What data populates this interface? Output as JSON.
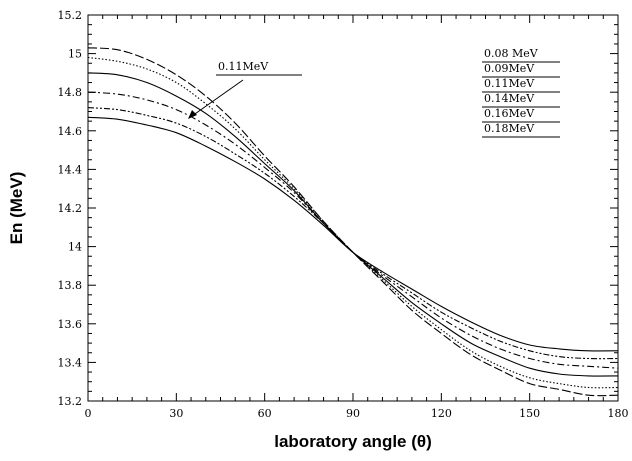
{
  "chart_data": {
    "type": "line",
    "title": "",
    "xlabel": "laboratory angle (θ)",
    "ylabel": "En (MeV)",
    "xlim": [
      0,
      180
    ],
    "ylim": [
      13.2,
      15.2
    ],
    "xticks": [
      "0",
      "30",
      "60",
      "90",
      "120",
      "150",
      "180"
    ],
    "yticks": [
      "13.2",
      "13.4",
      "13.6",
      "13.8",
      "14",
      "14.2",
      "14.4",
      "14.6",
      "14.8",
      "15",
      "15.2"
    ],
    "grid": false,
    "legend_position": "top-right",
    "x": [
      0,
      10,
      20,
      30,
      40,
      50,
      60,
      70,
      80,
      90,
      100,
      110,
      120,
      130,
      140,
      150,
      160,
      170,
      180
    ],
    "series": [
      {
        "name": "0.08 MeV",
        "style": "long-dash",
        "color": "#000000",
        "values": [
          15.03,
          15.02,
          14.97,
          14.89,
          14.78,
          14.64,
          14.47,
          14.31,
          14.13,
          13.97,
          13.82,
          13.67,
          13.55,
          13.44,
          13.36,
          13.29,
          13.26,
          13.23,
          13.23
        ]
      },
      {
        "name": "0.09MeV",
        "style": "dotted",
        "color": "#000000",
        "values": [
          14.98,
          14.96,
          14.92,
          14.85,
          14.74,
          14.61,
          14.45,
          14.3,
          14.13,
          13.97,
          13.83,
          13.69,
          13.57,
          13.46,
          13.38,
          13.32,
          13.29,
          13.27,
          13.27
        ]
      },
      {
        "name": "0.11MeV",
        "style": "solid",
        "color": "#000000",
        "values": [
          14.9,
          14.89,
          14.85,
          14.78,
          14.69,
          14.57,
          14.43,
          14.29,
          14.12,
          13.97,
          13.84,
          13.71,
          13.6,
          13.5,
          13.43,
          13.37,
          13.34,
          13.33,
          13.33
        ]
      },
      {
        "name": "0.14MeV",
        "style": "dash-dot",
        "color": "#000000",
        "values": [
          14.8,
          14.79,
          14.76,
          14.71,
          14.63,
          14.53,
          14.41,
          14.28,
          14.12,
          13.97,
          13.85,
          13.74,
          13.63,
          13.54,
          13.47,
          13.42,
          13.39,
          13.38,
          13.37
        ]
      },
      {
        "name": "0.16MeV",
        "style": "dash-dot-dot",
        "color": "#000000",
        "values": [
          14.72,
          14.71,
          14.68,
          14.64,
          14.57,
          14.48,
          14.38,
          14.26,
          14.12,
          13.97,
          13.86,
          13.76,
          13.66,
          13.58,
          13.51,
          13.46,
          13.43,
          13.42,
          13.42
        ]
      },
      {
        "name": "0.18MeV",
        "style": "solid",
        "color": "#000000",
        "values": [
          14.67,
          14.66,
          14.63,
          14.59,
          14.52,
          14.44,
          14.35,
          14.24,
          14.11,
          13.97,
          13.87,
          13.78,
          13.69,
          13.61,
          13.54,
          13.49,
          13.47,
          13.46,
          13.46
        ]
      }
    ],
    "annotation": {
      "text": "0.11MeV",
      "arrow_target_series": "0.11MeV"
    }
  }
}
